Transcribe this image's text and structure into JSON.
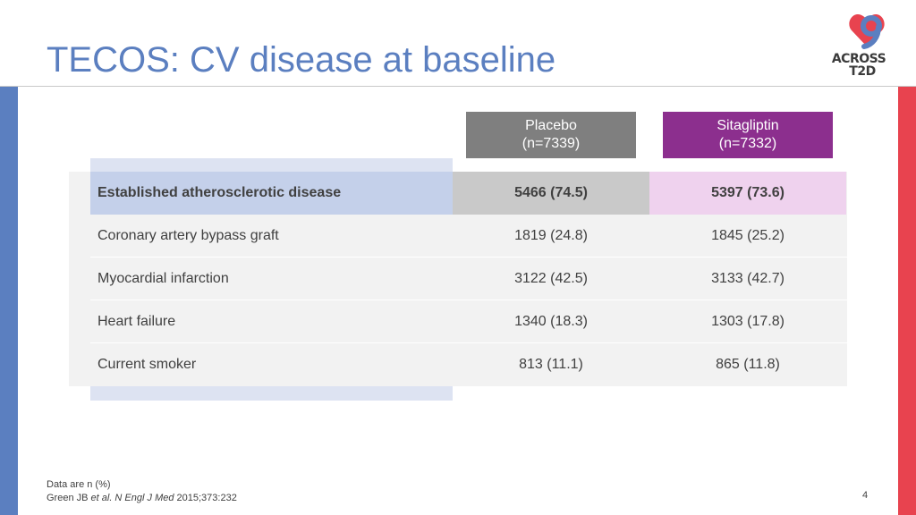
{
  "slide": {
    "title": "TECOS: CV disease at baseline",
    "page_number": "4"
  },
  "logo": {
    "line1": "ACROSS",
    "line2": "T2D",
    "colors": {
      "heart": "#e8434f",
      "number": "#5b7fc0",
      "text": "#3b3b3b"
    }
  },
  "table": {
    "columns": [
      {
        "name": "Placebo",
        "n": "(n=7339)",
        "color": "#7f7f7f"
      },
      {
        "name": "Sitagliptin",
        "n": "(n=7332)",
        "color": "#8c2f8e"
      }
    ],
    "rows": [
      {
        "label": "Established atherosclerotic disease",
        "placebo": "5466 (74.5)",
        "sitagliptin": "5397 (73.6)"
      },
      {
        "label": "Coronary artery bypass graft",
        "placebo": "1819 (24.8)",
        "sitagliptin": "1845 (25.2)"
      },
      {
        "label": "Myocardial infarction",
        "placebo": "3122 (42.5)",
        "sitagliptin": "3133 (42.7)"
      },
      {
        "label": "Heart failure",
        "placebo": "1340 (18.3)",
        "sitagliptin": "1303 (17.8)"
      },
      {
        "label": "Current smoker",
        "placebo": "813 (11.1)",
        "sitagliptin": "865 (11.8)"
      }
    ]
  },
  "footnote": {
    "line1": "Data are n (%)",
    "author": "Green JB ",
    "journal": "et al. N Engl J Med",
    "citation": " 2015;373:232"
  },
  "colors": {
    "accent_blue": "#5b7fc0",
    "accent_red": "#e8434f"
  }
}
